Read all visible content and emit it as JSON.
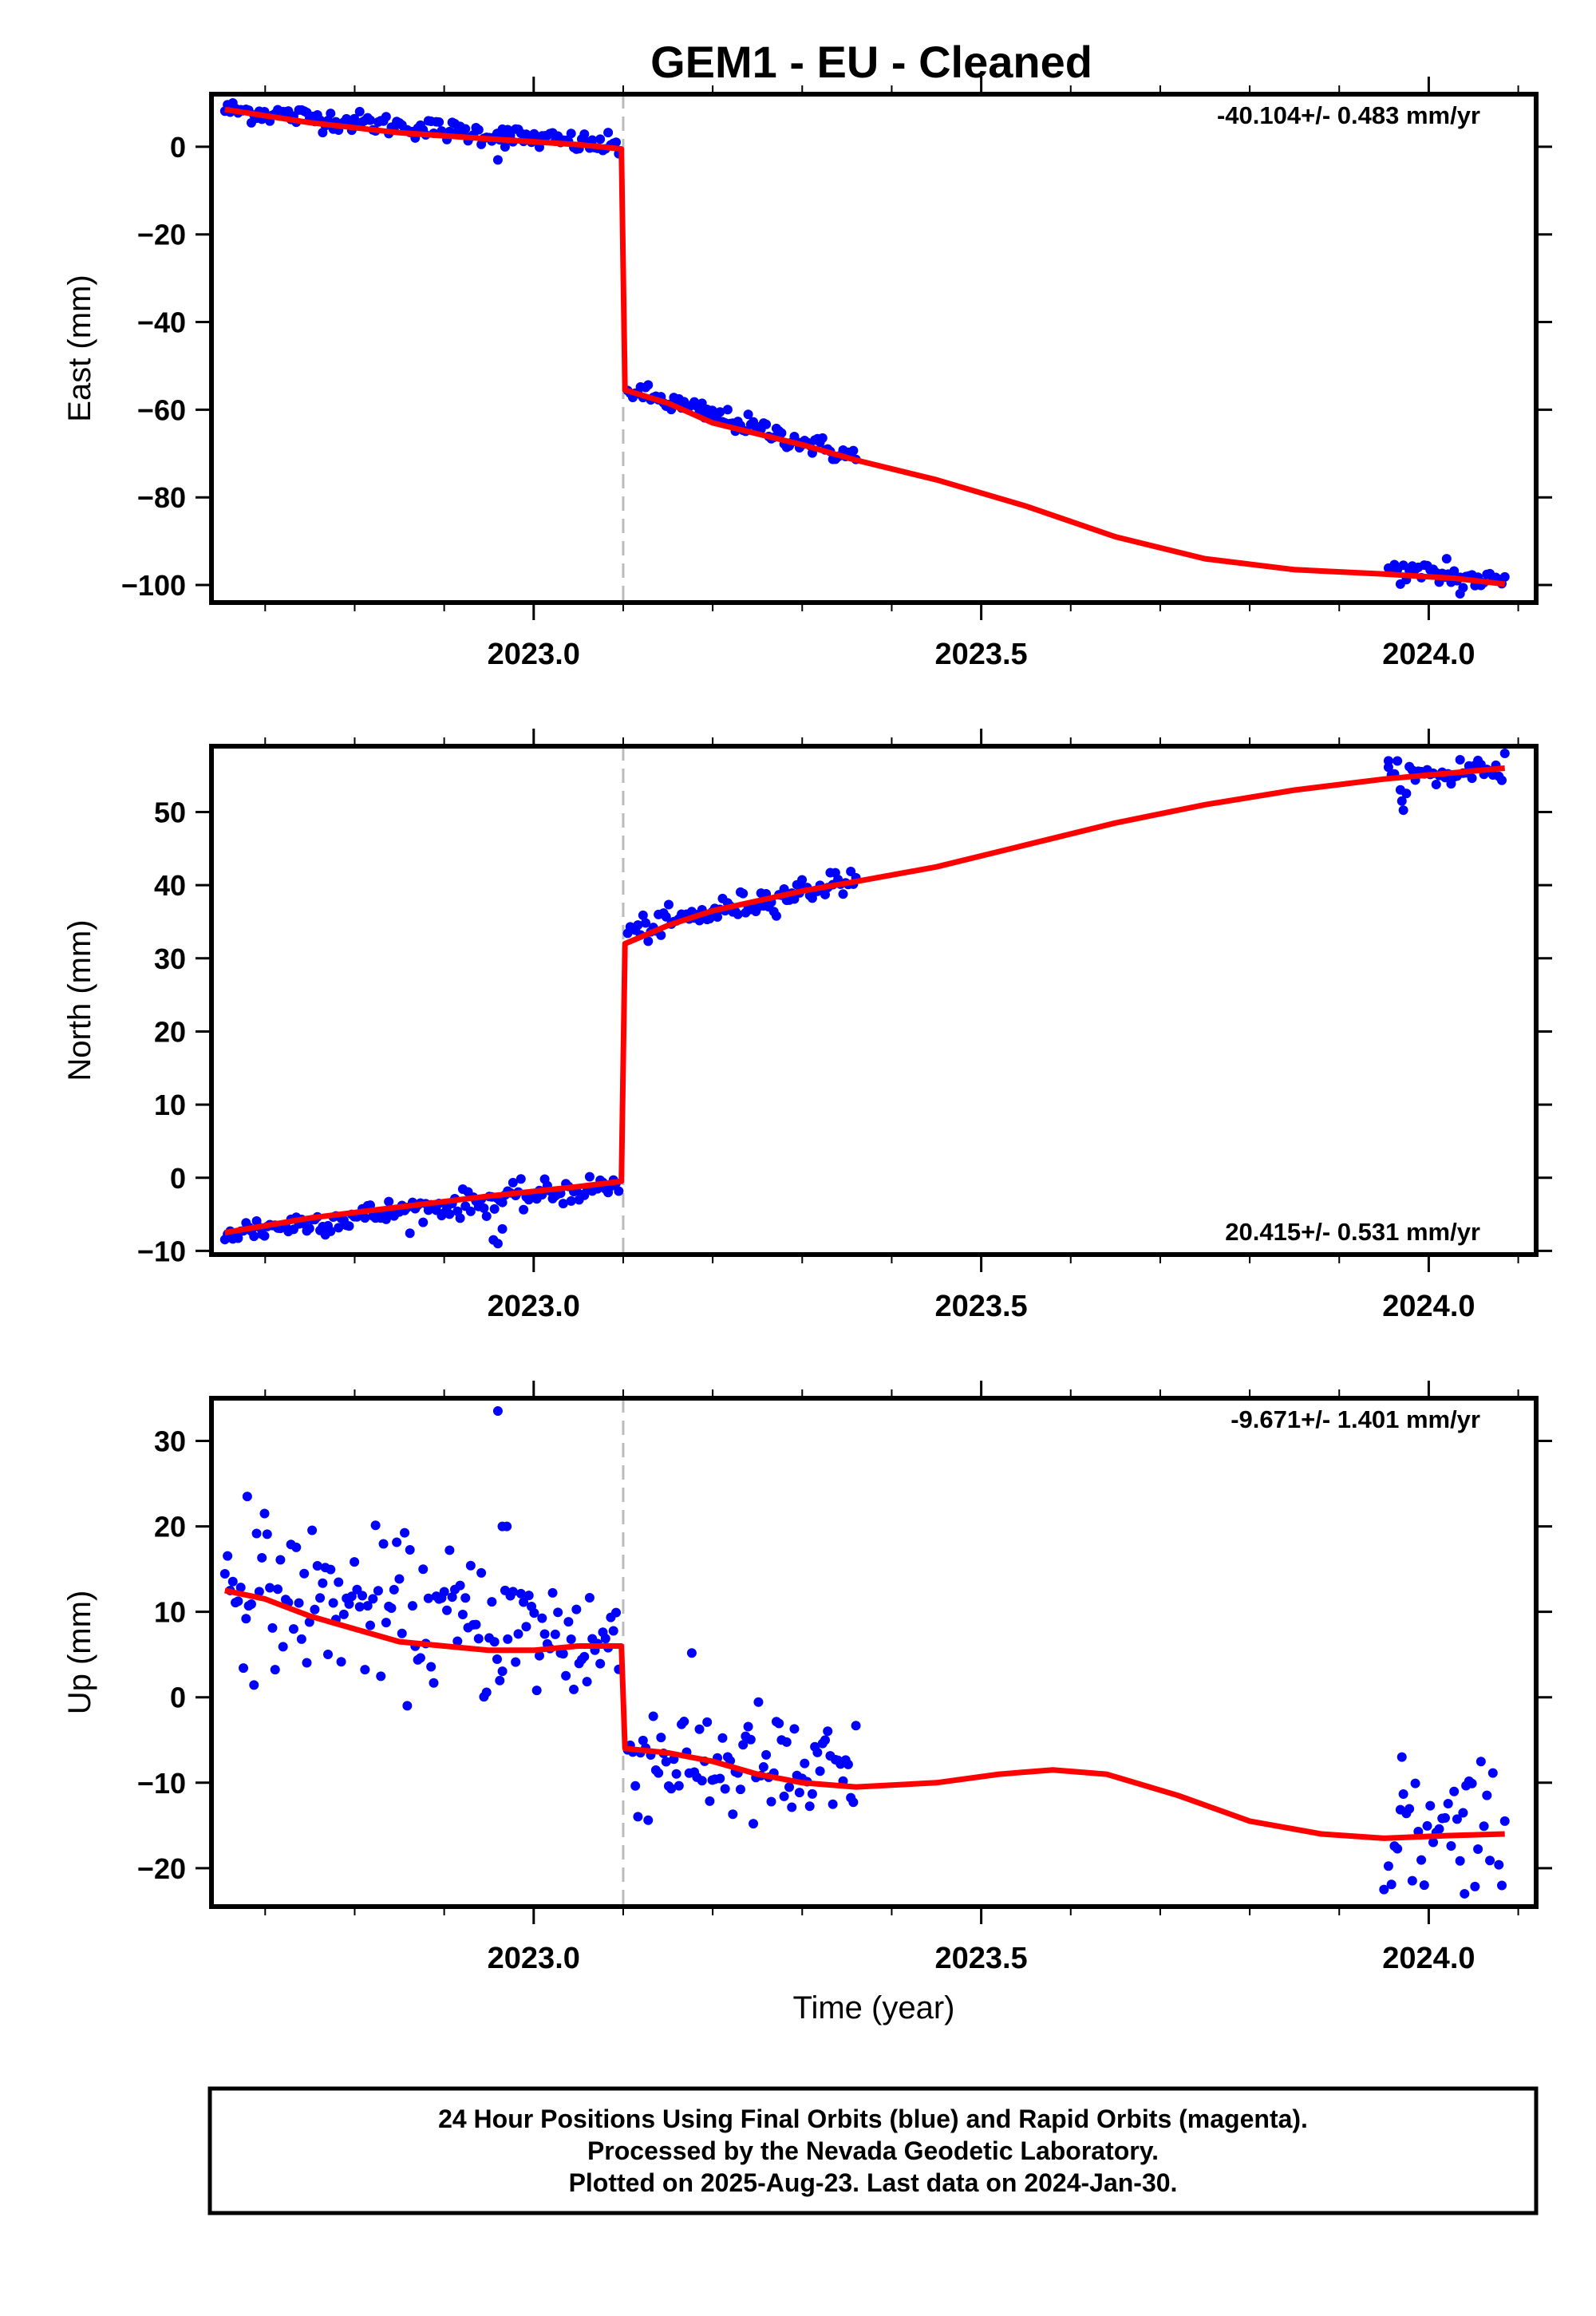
{
  "title": "GEM1  - EU - Cleaned",
  "footer": {
    "line1": "24 Hour Positions Using Final Orbits (blue) and Rapid Orbits (magenta).",
    "line2": "Processed by the Nevada Geodetic Laboratory.",
    "line3": "Plotted on 2025-Aug-23. Last data on 2024-Jan-30."
  },
  "colors": {
    "points": "#0000ff",
    "fit": "#ff0000",
    "event_line": "#bbbbbb",
    "axes": "#000000"
  },
  "chart_data": [
    {
      "type": "scatter",
      "name": "east",
      "ylabel": "East (mm)",
      "xlabel": "",
      "rate_label": "-40.104+/- 0.483 mm/yr",
      "rate_position": "top-right",
      "xlim": [
        2022.64,
        2024.12
      ],
      "ylim": [
        -104,
        12
      ],
      "xticks": [
        "2023.0",
        "2023.5",
        "2024.0"
      ],
      "yticks": [
        "0",
        "−20",
        "−40",
        "−60",
        "−80",
        "−100"
      ],
      "event_line_x": 2023.1,
      "points_segments": [
        {
          "x_start": 2022.655,
          "x_end": 2023.095,
          "y_start": 8.5,
          "y_end": 0,
          "noise": 1.2,
          "n": 150
        },
        {
          "x_start": 2023.105,
          "x_end": 2023.36,
          "y_start": -55.5,
          "y_end": -71,
          "noise": 1.2,
          "n": 90
        },
        {
          "x_start": 2023.955,
          "x_end": 2024.085,
          "y_start": -96.5,
          "y_end": -99.5,
          "noise": 1.3,
          "n": 40
        }
      ],
      "outliers": [
        [
          2022.96,
          -3
        ],
        [
          2022.965,
          4
        ],
        [
          2024.035,
          -102
        ],
        [
          2024.02,
          -94
        ]
      ],
      "fit": [
        [
          2022.655,
          8.5
        ],
        [
          2022.75,
          5.5
        ],
        [
          2022.85,
          3.2
        ],
        [
          2022.95,
          1.8
        ],
        [
          2023.05,
          0.5
        ],
        [
          2023.098,
          -0.5
        ],
        [
          2023.102,
          -55.5
        ],
        [
          2023.15,
          -58.5
        ],
        [
          2023.2,
          -63
        ],
        [
          2023.25,
          -65.5
        ],
        [
          2023.3,
          -68
        ],
        [
          2023.36,
          -71.5
        ],
        [
          2023.45,
          -76
        ],
        [
          2023.55,
          -82
        ],
        [
          2023.65,
          -89
        ],
        [
          2023.75,
          -94
        ],
        [
          2023.85,
          -96.5
        ],
        [
          2023.95,
          -97.5
        ],
        [
          2024.03,
          -98.5
        ],
        [
          2024.085,
          -99.8
        ]
      ]
    },
    {
      "type": "scatter",
      "name": "north",
      "ylabel": "North (mm)",
      "xlabel": "",
      "rate_label": "20.415+/- 0.531 mm/yr",
      "rate_position": "bottom-right",
      "xlim": [
        2022.64,
        2024.12
      ],
      "ylim": [
        -10.5,
        59
      ],
      "xticks": [
        "2023.0",
        "2023.5",
        "2024.0"
      ],
      "yticks": [
        "50",
        "40",
        "30",
        "20",
        "10",
        "0",
        "−10"
      ],
      "event_line_x": 2023.1,
      "points_segments": [
        {
          "x_start": 2022.655,
          "x_end": 2023.095,
          "y_start": -7.5,
          "y_end": -1,
          "noise": 0.9,
          "n": 150
        },
        {
          "x_start": 2023.105,
          "x_end": 2023.36,
          "y_start": 33.5,
          "y_end": 41,
          "noise": 0.9,
          "n": 90
        },
        {
          "x_start": 2023.955,
          "x_end": 2024.085,
          "y_start": 54,
          "y_end": 56.5,
          "noise": 1.2,
          "n": 40
        }
      ],
      "outliers": [
        [
          2022.955,
          -8.5
        ],
        [
          2022.96,
          -9
        ],
        [
          2022.965,
          -7
        ],
        [
          2023.97,
          51.5
        ],
        [
          2023.955,
          57
        ]
      ],
      "fit": [
        [
          2022.655,
          -7.5
        ],
        [
          2022.75,
          -5.5
        ],
        [
          2022.85,
          -4
        ],
        [
          2022.95,
          -2.5
        ],
        [
          2023.05,
          -1.2
        ],
        [
          2023.098,
          -0.5
        ],
        [
          2023.102,
          32
        ],
        [
          2023.15,
          34.5
        ],
        [
          2023.2,
          36.5
        ],
        [
          2023.3,
          39.2
        ],
        [
          2023.36,
          40.5
        ],
        [
          2023.45,
          42.5
        ],
        [
          2023.55,
          45.5
        ],
        [
          2023.65,
          48.5
        ],
        [
          2023.75,
          51
        ],
        [
          2023.85,
          53
        ],
        [
          2023.95,
          54.5
        ],
        [
          2024.085,
          56
        ]
      ]
    },
    {
      "type": "scatter",
      "name": "up",
      "ylabel": "Up (mm)",
      "xlabel": "Time (year)",
      "rate_label": "-9.671+/- 1.401 mm/yr",
      "rate_position": "top-right",
      "xlim": [
        2022.64,
        2024.12
      ],
      "ylim": [
        -24.5,
        35
      ],
      "xticks": [
        "2023.0",
        "2023.5",
        "2024.0"
      ],
      "yticks": [
        "30",
        "20",
        "10",
        "0",
        "−10",
        "−20"
      ],
      "event_line_x": 2023.1,
      "points_segments": [
        {
          "x_start": 2022.655,
          "x_end": 2023.095,
          "y_start": 13,
          "y_end": 6,
          "noise": 4.2,
          "n": 150
        },
        {
          "x_start": 2023.105,
          "x_end": 2023.36,
          "y_start": -6,
          "y_end": -10.5,
          "noise": 3.8,
          "n": 90
        },
        {
          "x_start": 2023.955,
          "x_end": 2024.085,
          "y_start": -16,
          "y_end": -16,
          "noise": 4.0,
          "n": 40
        }
      ],
      "outliers": [
        [
          2022.96,
          33.5
        ],
        [
          2022.965,
          20
        ],
        [
          2022.97,
          20
        ],
        [
          2022.68,
          23.5
        ],
        [
          2023.97,
          -7
        ],
        [
          2023.95,
          -22.5
        ],
        [
          2024.04,
          -23
        ]
      ],
      "fit": [
        [
          2022.655,
          12.5
        ],
        [
          2022.7,
          11.5
        ],
        [
          2022.75,
          9.5
        ],
        [
          2022.8,
          8
        ],
        [
          2022.85,
          6.5
        ],
        [
          2022.9,
          6
        ],
        [
          2022.95,
          5.5
        ],
        [
          2023.0,
          5.5
        ],
        [
          2023.05,
          6
        ],
        [
          2023.098,
          6
        ],
        [
          2023.102,
          -6
        ],
        [
          2023.15,
          -6.5
        ],
        [
          2023.2,
          -7.5
        ],
        [
          2023.25,
          -9
        ],
        [
          2023.3,
          -10
        ],
        [
          2023.36,
          -10.5
        ],
        [
          2023.45,
          -10
        ],
        [
          2023.52,
          -9
        ],
        [
          2023.58,
          -8.5
        ],
        [
          2023.64,
          -9
        ],
        [
          2023.72,
          -11.5
        ],
        [
          2023.8,
          -14.5
        ],
        [
          2023.88,
          -16
        ],
        [
          2023.95,
          -16.5
        ],
        [
          2024.02,
          -16.2
        ],
        [
          2024.085,
          -16
        ]
      ]
    }
  ]
}
